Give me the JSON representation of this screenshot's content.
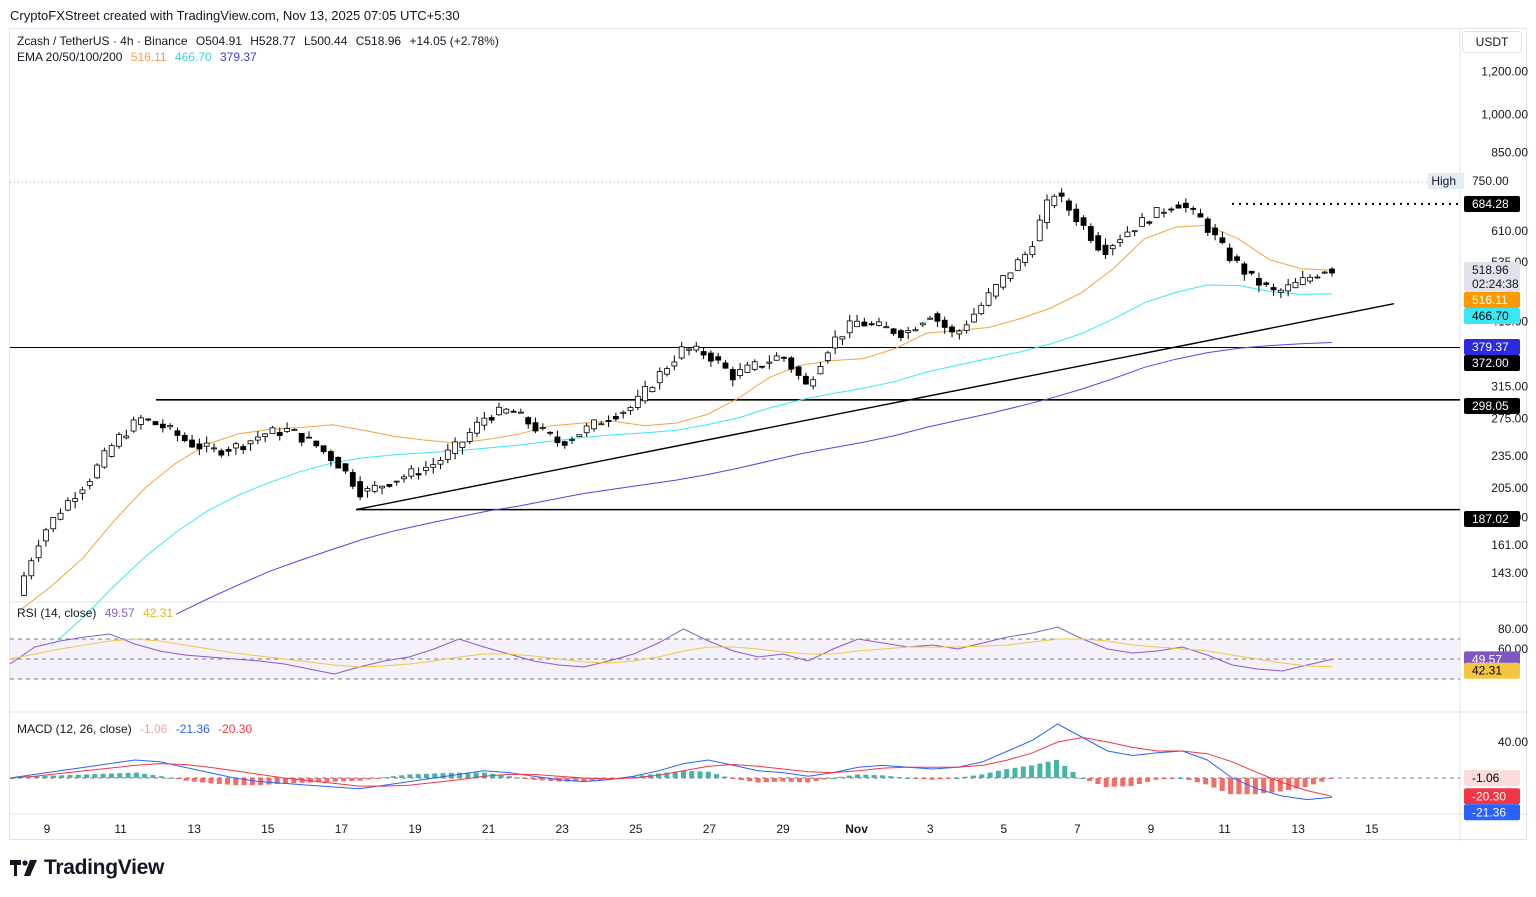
{
  "caption": "CryptoFXStreet created with TradingView.com, Nov 13, 2025 07:05 UTC+5:30",
  "brand": "TradingView",
  "currency": "USDT",
  "header": {
    "symbol": "Zcash / TetherUS · 4h · Binance",
    "open": "O504.91",
    "high": "H528.77",
    "low": "L500.44",
    "close": "C518.96",
    "change": "+14.05 (+2.78%)"
  },
  "ema_legend": {
    "label": "EMA 20/50/100/200",
    "v1": "516.11",
    "v2": "466.70",
    "v3": "379.37"
  },
  "rsi_legend": {
    "label": "RSI (14, close)",
    "v1": "49.57",
    "v2": "42.31"
  },
  "macd_legend": {
    "label": "MACD (12, 26, close)",
    "v1": "-1.06",
    "v2": "-21.36",
    "v3": "-20.30"
  },
  "colors": {
    "up": "#ffffff",
    "down": "#000000",
    "ema_orange": "#f7a140",
    "ema_cyan": "#38e8f5",
    "ema_blue": "#4a49e6",
    "rsi_purple": "#8a5cc9",
    "rsi_ma": "#f5c542",
    "macd_blue": "#2962ff",
    "macd_red": "#f23645",
    "hist_green": "#26a69a",
    "hist_red": "#ef5350"
  },
  "chart_data": [
    {
      "type": "candlestick",
      "scale": "log",
      "price_axis_ticks": [
        "1,200.00",
        "1,000.00",
        "850.00",
        "610.00",
        "535.00",
        "415.00",
        "315.00",
        "275.00",
        "235.00",
        "205.00",
        "181.00",
        "161.00",
        "143.00"
      ],
      "high_label": "High",
      "high_value": 750.0,
      "x_ticks": [
        "9",
        "11",
        "13",
        "15",
        "17",
        "19",
        "21",
        "23",
        "25",
        "27",
        "29",
        "Nov",
        "3",
        "5",
        "7",
        "9",
        "11",
        "13",
        "15"
      ],
      "price_labels": [
        {
          "text": "750.00",
          "kind": "high"
        },
        {
          "text": "684.28",
          "kind": "level"
        },
        {
          "text": "518.96",
          "kind": "last"
        },
        {
          "text": "02:24:38",
          "kind": "countdown"
        },
        {
          "text": "516.11",
          "kind": "ema20"
        },
        {
          "text": "466.70",
          "kind": "ema50"
        },
        {
          "text": "379.37",
          "kind": "ema100"
        },
        {
          "text": "372.00",
          "kind": "level"
        },
        {
          "text": "298.05",
          "kind": "level"
        },
        {
          "text": "187.02",
          "kind": "level"
        }
      ],
      "horizontal_levels": [
        372.0,
        298.05,
        187.02
      ],
      "dotted_resistance": 684.28,
      "trendline": {
        "from": [
          "Oct 17",
          187.02
        ],
        "to": [
          "Nov 14",
          448
        ]
      },
      "box_top": 298.05,
      "ema_series": [
        {
          "name": "EMA 20",
          "values": [
            122,
            135,
            152,
            178,
            205,
            228,
            247,
            258,
            263,
            265,
            268,
            262,
            255,
            251,
            248,
            252,
            258,
            267,
            270,
            272,
            267,
            270,
            280,
            300,
            328,
            345,
            352,
            355,
            370,
            395,
            400,
            405,
            420,
            440,
            470,
            520,
            590,
            620,
            625,
            590,
            540,
            520,
            516
          ]
        },
        {
          "name": "EMA 50",
          "values": [
            null,
            105,
            118,
            135,
            153,
            170,
            186,
            199,
            210,
            220,
            228,
            233,
            236,
            238,
            240,
            243,
            246,
            250,
            254,
            257,
            259,
            262,
            268,
            276,
            288,
            298,
            306,
            313,
            322,
            335,
            345,
            355,
            365,
            378,
            395,
            420,
            450,
            470,
            485,
            484,
            472,
            466,
            467
          ]
        },
        {
          "name": "EMA 100",
          "values": [
            null,
            null,
            null,
            null,
            null,
            120,
            128,
            136,
            144,
            151,
            158,
            165,
            171,
            176,
            181,
            186,
            190,
            195,
            200,
            204,
            208,
            212,
            217,
            223,
            230,
            237,
            243,
            249,
            256,
            265,
            273,
            281,
            290,
            300,
            312,
            326,
            342,
            354,
            364,
            371,
            375,
            378,
            380
          ]
        }
      ],
      "series": [
        {
          "name": "price",
          "values": [
            130,
            168,
            192,
            215,
            250,
            275,
            265,
            248,
            240,
            245,
            258,
            262,
            248,
            228,
            200,
            210,
            218,
            228,
            248,
            278,
            285,
            265,
            248,
            262,
            278,
            290,
            330,
            370,
            362,
            330,
            345,
            360,
            315,
            380,
            415,
            405,
            395,
            430,
            390,
            440,
            500,
            560,
            720,
            640,
            560,
            610,
            650,
            690,
            640,
            555,
            500,
            468,
            490,
            519
          ]
        }
      ]
    },
    {
      "type": "line",
      "name": "RSI",
      "ylim": [
        0,
        100
      ],
      "ticks": [
        "80.00",
        "60.00"
      ],
      "bands": [
        70,
        50,
        30
      ],
      "series": [
        {
          "name": "RSI",
          "values": [
            45,
            62,
            68,
            72,
            75,
            65,
            58,
            54,
            52,
            50,
            48,
            45,
            40,
            35,
            42,
            48,
            52,
            60,
            70,
            62,
            55,
            48,
            44,
            42,
            48,
            55,
            66,
            80,
            68,
            58,
            52,
            55,
            48,
            60,
            70,
            66,
            62,
            64,
            60,
            66,
            72,
            76,
            82,
            70,
            60,
            56,
            58,
            62,
            54,
            44,
            40,
            38,
            44,
            49.57
          ]
        },
        {
          "name": "RSI MA",
          "values": [
            50,
            55,
            60,
            64,
            68,
            70,
            68,
            64,
            60,
            56,
            53,
            50,
            47,
            44,
            42,
            43,
            45,
            48,
            52,
            55,
            55,
            53,
            50,
            47,
            46,
            48,
            52,
            58,
            62,
            62,
            60,
            57,
            55,
            55,
            58,
            60,
            62,
            62,
            62,
            63,
            64,
            67,
            70,
            70,
            68,
            64,
            62,
            60,
            58,
            54,
            50,
            46,
            43,
            42.31
          ]
        }
      ],
      "price_labels": [
        "49.57",
        "42.31"
      ]
    },
    {
      "type": "bar",
      "name": "MACD",
      "ticks": [
        "40.00"
      ],
      "price_labels": [
        "-1.06",
        "-20.30",
        "-21.36"
      ],
      "series": [
        {
          "name": "MACD",
          "values": [
            0,
            4,
            8,
            12,
            16,
            20,
            18,
            12,
            6,
            0,
            -4,
            -6,
            -8,
            -10,
            -12,
            -8,
            -4,
            0,
            4,
            8,
            6,
            2,
            -2,
            -4,
            -2,
            2,
            8,
            16,
            20,
            14,
            8,
            6,
            2,
            6,
            12,
            14,
            12,
            10,
            12,
            18,
            30,
            42,
            60,
            45,
            30,
            25,
            28,
            30,
            20,
            0,
            -12,
            -20,
            -24,
            -21.36
          ]
        },
        {
          "name": "Signal",
          "values": [
            0,
            2,
            5,
            8,
            11,
            14,
            16,
            15,
            12,
            8,
            4,
            0,
            -3,
            -6,
            -9,
            -9,
            -8,
            -5,
            -2,
            2,
            4,
            4,
            2,
            0,
            -1,
            0,
            3,
            8,
            13,
            15,
            13,
            10,
            7,
            6,
            8,
            11,
            12,
            12,
            12,
            14,
            20,
            28,
            40,
            45,
            40,
            34,
            30,
            30,
            27,
            18,
            6,
            -5,
            -14,
            -20.3
          ]
        }
      ]
    }
  ]
}
